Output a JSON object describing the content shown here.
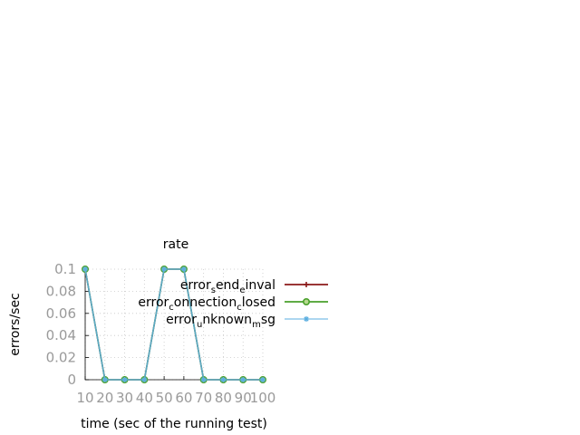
{
  "chart_data": {
    "type": "line",
    "title": "rate",
    "xlabel": "time (sec of the running test)",
    "ylabel": "errors/sec",
    "x": [
      10,
      20,
      30,
      40,
      50,
      60,
      70,
      80,
      90,
      100
    ],
    "xlim": [
      10,
      100
    ],
    "ylim": [
      0,
      0.1
    ],
    "xticks": [
      "10",
      "20",
      "30",
      "40",
      "50",
      "60",
      "70",
      "80",
      "90",
      "100"
    ],
    "yticks": [
      "0",
      "0.02",
      "0.04",
      "0.06",
      "0.08",
      "0.1"
    ],
    "yticks_values": [
      0,
      0.02,
      0.04,
      0.06,
      0.08,
      0.1
    ],
    "grid": true,
    "legend_position": "right",
    "series": [
      {
        "legend": [
          {
            "text": "error",
            "sub": false
          },
          {
            "text": "s",
            "sub": true
          },
          {
            "text": "end",
            "sub": false
          },
          {
            "text": "e",
            "sub": true
          },
          {
            "text": "inval",
            "sub": false
          }
        ],
        "color": "#8b1a1a",
        "marker": "plus",
        "values": [
          0.1,
          0,
          0,
          0,
          0.1,
          0.1,
          0,
          0,
          0,
          0
        ]
      },
      {
        "legend": [
          {
            "text": "error",
            "sub": false
          },
          {
            "text": "c",
            "sub": true
          },
          {
            "text": "onnection",
            "sub": false
          },
          {
            "text": "c",
            "sub": true
          },
          {
            "text": "losed",
            "sub": false
          }
        ],
        "color": "#4aa02c",
        "marker": "circle",
        "values": [
          0.1,
          0,
          0,
          0,
          0.1,
          0.1,
          0,
          0,
          0,
          0
        ]
      },
      {
        "legend": [
          {
            "text": "error",
            "sub": false
          },
          {
            "text": "u",
            "sub": true
          },
          {
            "text": "nknown",
            "sub": false
          },
          {
            "text": "m",
            "sub": true
          },
          {
            "text": "sg",
            "sub": false
          }
        ],
        "color": "#5aaee0",
        "marker": "star",
        "values": [
          0.1,
          0,
          0,
          0,
          0.1,
          0.1,
          0,
          0,
          0,
          0
        ]
      }
    ]
  }
}
